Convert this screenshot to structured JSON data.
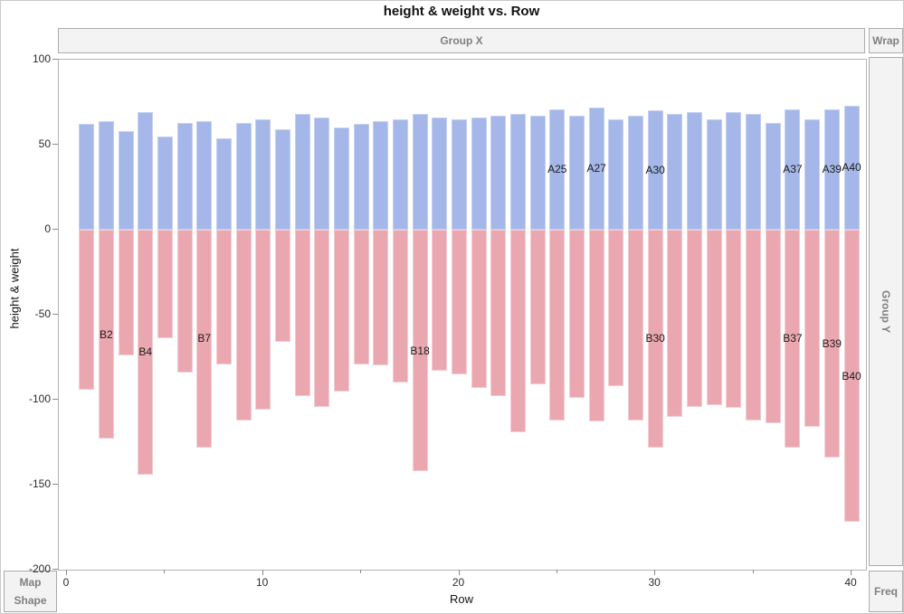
{
  "window": {
    "title": "height & weight vs. Row"
  },
  "drop_zones": {
    "group_x": "Group X",
    "wrap": "Wrap",
    "group_y": "Group Y",
    "freq": "Freq",
    "map": "Map",
    "shape": "Shape"
  },
  "axes": {
    "y": {
      "label": "height & weight",
      "ticks": [
        100,
        50,
        0,
        -50,
        -100,
        -150,
        -200
      ]
    },
    "x": {
      "label": "Row",
      "major_ticks": [
        0,
        10,
        20,
        30,
        40
      ],
      "minor_ticks": [
        5,
        15,
        25,
        35
      ]
    }
  },
  "colors": {
    "height_bar": "#a4b7e8",
    "height_bar_edge": "#c4cff2",
    "weight_bar": "#ebа7b0",
    "weight_bar_fill": "#eba7b0",
    "weight_bar_edge": "#f4ccd2",
    "zone_bg": "#f3f3f3",
    "zone_border": "#ababab",
    "zone_text": "#808080",
    "frame": "#b4b4b4",
    "tick": "#8a8a8a"
  },
  "chart_data": {
    "type": "bar",
    "title": "height & weight vs. Row",
    "xlabel": "Row",
    "ylabel": "height & weight",
    "legend_position": "none",
    "grid": false,
    "xlim": [
      -0.415,
      40.74
    ],
    "ylim": [
      -200,
      100
    ],
    "x": [
      1,
      2,
      3,
      4,
      5,
      6,
      7,
      8,
      9,
      10,
      11,
      12,
      13,
      14,
      15,
      16,
      17,
      18,
      19,
      20,
      21,
      22,
      23,
      24,
      25,
      26,
      27,
      28,
      29,
      30,
      31,
      32,
      33,
      34,
      35,
      36,
      37,
      38,
      39,
      40
    ],
    "series": [
      {
        "name": "height",
        "direction": "up",
        "color": "#a4b7e8",
        "values": [
          62,
          64,
          58,
          69,
          55,
          63,
          64,
          54,
          63,
          65,
          59,
          68,
          66,
          60,
          62,
          64,
          65,
          68,
          66,
          65,
          66,
          67,
          68,
          67,
          71,
          67,
          72,
          65,
          67,
          70,
          68,
          69,
          65,
          69,
          68,
          63,
          71,
          65,
          71,
          73
        ]
      },
      {
        "name": "weight",
        "direction": "down",
        "color": "#eba7b0",
        "values": [
          -94,
          -123,
          -74,
          -144,
          -64,
          -84,
          -128,
          -79,
          -112,
          -106,
          -66,
          -98,
          -104,
          -95,
          -79,
          -80,
          -90,
          -142,
          -83,
          -85,
          -93,
          -98,
          -119,
          -91,
          -112,
          -99,
          -113,
          -92,
          -112,
          -128,
          -110,
          -104,
          -103,
          -105,
          -112,
          -114,
          -128,
          -116,
          -134,
          -172
        ]
      }
    ],
    "bar_labels": {
      "height": {
        "25": "A25",
        "27": "A27",
        "30": "A30",
        "37": "A37",
        "39": "A39",
        "40": "A40"
      },
      "weight": {
        "2": "B2",
        "4": "B4",
        "7": "B7",
        "18": "B18",
        "30": "B30",
        "37": "B37",
        "39": "B39",
        "40": "B40"
      }
    }
  }
}
